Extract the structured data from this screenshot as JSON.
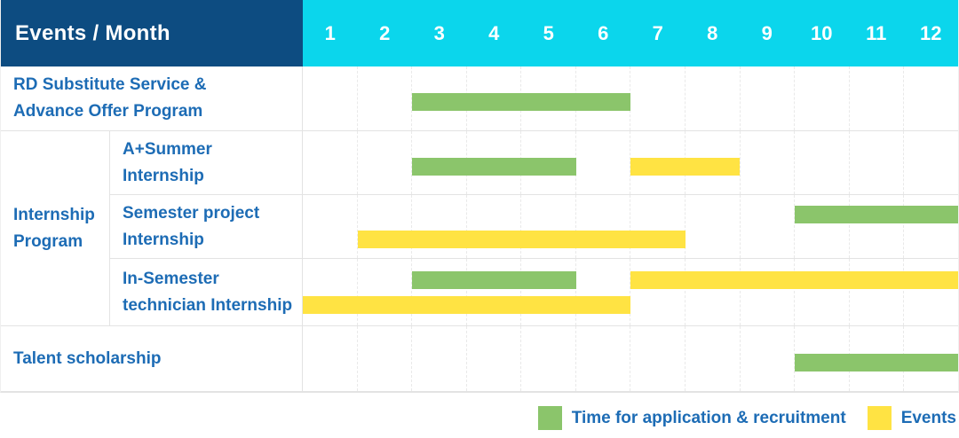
{
  "header": {
    "title": "Events / Month",
    "months": [
      "1",
      "2",
      "3",
      "4",
      "5",
      "6",
      "7",
      "8",
      "9",
      "10",
      "11",
      "12"
    ]
  },
  "colors": {
    "navy": "#0d4c81",
    "cyan": "#0bd6ec",
    "green": "#8bc56b",
    "yellow": "#ffe343",
    "label_blue": "#1d6cb5",
    "grid_line": "#e3e3e3"
  },
  "chart_data": {
    "type": "gantt",
    "x_unit": "month",
    "x_range": [
      1,
      12
    ],
    "title": "Events / Month",
    "grid": "dashed vertical month lines",
    "legend_position": "bottom-right",
    "legend": [
      {
        "color": "green",
        "label": "Time for application & recruitment"
      },
      {
        "color": "yellow",
        "label": "Events"
      }
    ],
    "group_labels": {
      "Internship Program": [
        "Internship",
        "Program"
      ]
    },
    "rows": [
      {
        "group": null,
        "label": [
          "RD Substitute Service &",
          "Advance Offer Program"
        ],
        "lines": [
          [
            {
              "color": "green",
              "start_month": 3,
              "end_month": 6
            }
          ]
        ]
      },
      {
        "group": "Internship Program",
        "label": [
          "A+Summer",
          "Internship"
        ],
        "lines": [
          [
            {
              "color": "green",
              "start_month": 3,
              "end_month": 5
            },
            {
              "color": "yellow",
              "start_month": 7,
              "end_month": 8
            }
          ]
        ]
      },
      {
        "group": "Internship Program",
        "label": [
          "Semester project",
          "Internship"
        ],
        "lines": [
          [
            {
              "color": "green",
              "start_month": 10,
              "end_month": 12
            }
          ],
          [
            {
              "color": "yellow",
              "start_month": 2,
              "end_month": 7
            }
          ]
        ]
      },
      {
        "group": "Internship Program",
        "label": [
          "In-Semester",
          "technician Internship"
        ],
        "lines": [
          [
            {
              "color": "green",
              "start_month": 3,
              "end_month": 5
            },
            {
              "color": "yellow",
              "start_month": 7,
              "end_month": 12
            }
          ],
          [
            {
              "color": "yellow",
              "start_month": 1,
              "end_month": 6
            }
          ]
        ]
      },
      {
        "group": null,
        "label": [
          "Talent scholarship"
        ],
        "lines": [
          [
            {
              "color": "green",
              "start_month": 10,
              "end_month": 12
            }
          ]
        ]
      }
    ]
  }
}
